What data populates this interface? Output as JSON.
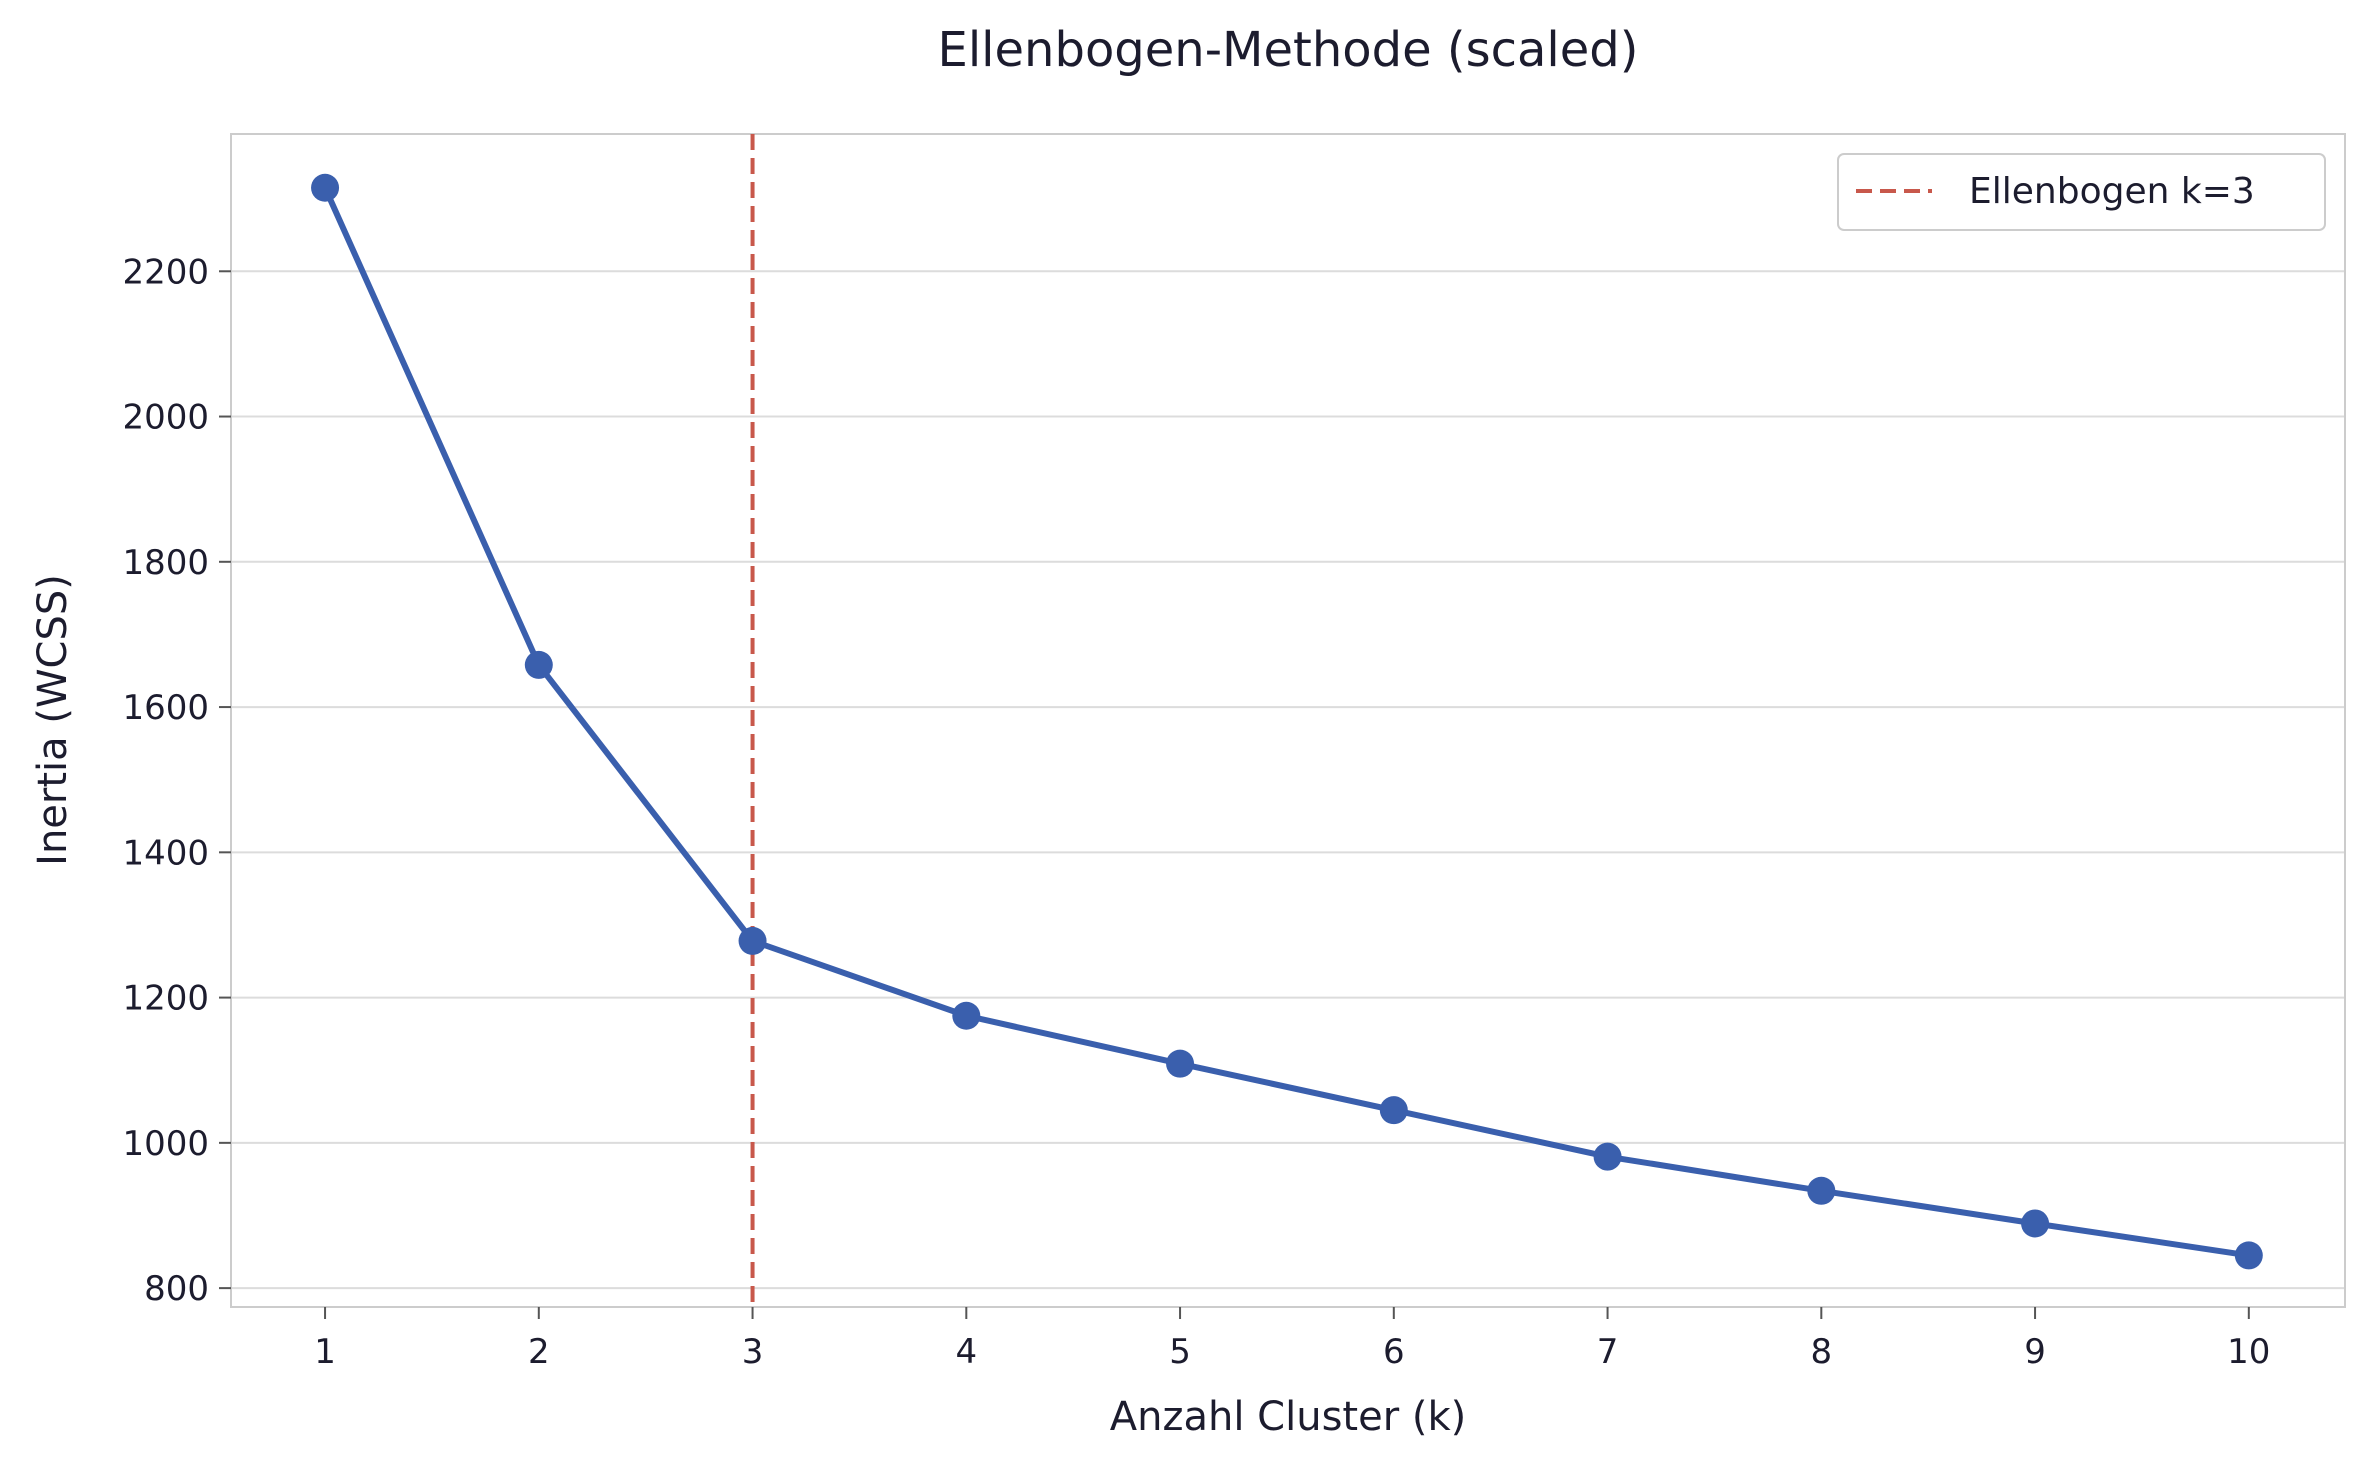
{
  "chart_data": {
    "type": "line",
    "title": "Ellenbogen-Methode (scaled)",
    "xlabel": "Anzahl Cluster (k)",
    "ylabel": "Inertia (WCSS)",
    "x": [
      1,
      2,
      3,
      4,
      5,
      6,
      7,
      8,
      9,
      10
    ],
    "series": [
      {
        "values": [
          2315,
          1658,
          1278,
          1175,
          1109,
          1045,
          981,
          934,
          889,
          845
        ],
        "color": "#3a5fad",
        "marker": "circle"
      }
    ],
    "reference_line": {
      "orientation": "vertical",
      "x": 3,
      "label": "Ellenbogen k=3",
      "style": "dashed",
      "color": "#c8584b"
    },
    "x_ticks": [
      "1",
      "2",
      "3",
      "4",
      "5",
      "6",
      "7",
      "8",
      "9",
      "10"
    ],
    "y_ticks": [
      "800",
      "1000",
      "1200",
      "1400",
      "1600",
      "1800",
      "2000",
      "2200"
    ],
    "xlim": [
      0.56,
      10.45
    ],
    "ylim": [
      774,
      2389
    ],
    "grid": "horizontal",
    "legend_position": "top-right"
  }
}
